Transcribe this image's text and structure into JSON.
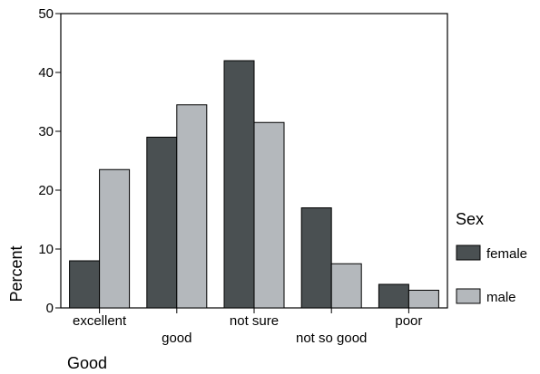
{
  "chart_data": {
    "type": "bar",
    "categories": [
      "excellent",
      "good",
      "not sure",
      "not so good",
      "poor"
    ],
    "series": [
      {
        "name": "female",
        "values": [
          8,
          29,
          42,
          17,
          4
        ],
        "color": "#4a5052"
      },
      {
        "name": "male",
        "values": [
          23.5,
          34.5,
          31.5,
          7.5,
          3
        ],
        "color": "#b4b8bc"
      }
    ],
    "xlabel": "Good",
    "ylabel": "Percent",
    "ylim": [
      0,
      50
    ],
    "yticks": [
      0,
      10,
      20,
      30,
      40,
      50
    ],
    "grid": false,
    "legend": {
      "title": "Sex",
      "position": "right"
    }
  }
}
